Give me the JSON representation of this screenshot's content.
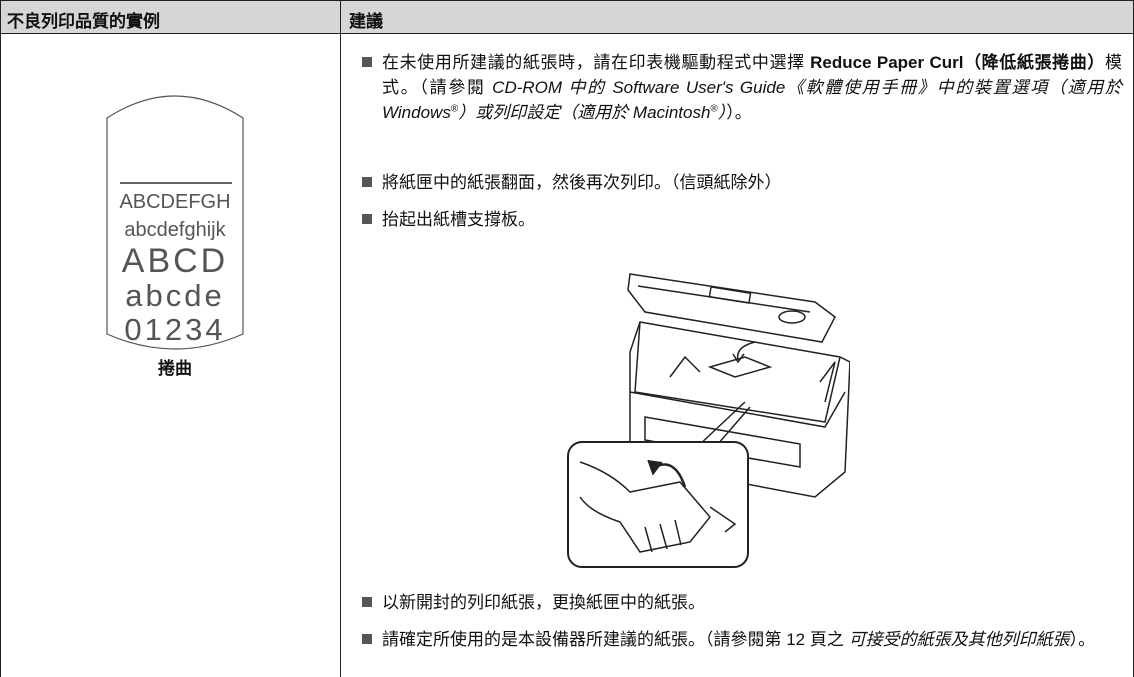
{
  "table": {
    "header": [
      "不良列印品質的實例",
      "建議"
    ],
    "example": {
      "sample_lines": [
        "ABCDEFGH",
        "abcdefghijk",
        "ABCD",
        "abcde",
        "01234"
      ],
      "caption": "捲曲"
    },
    "suggestions": [
      [
        "在未使用所建議的紙張時，請在印表機驅動程式中選擇 ",
        "Reduce Paper Curl",
        "（降低紙張捲曲）",
        "模式。（請參閱 ",
        "CD-ROM 中的 Software User's Guide《軟體使用手冊》中的裝置選項（適用於 Windows",
        "®",
        "）或列印設定（適用於 Macintosh",
        "®",
        "）",
        "）。"
      ],
      [
        "將紙匣中的紙張翻面，然後再次列印。（信頭紙除外）"
      ],
      [
        "抬起出紙槽支撐板。"
      ],
      [
        "以新開封的列印紙張，更換紙匣中的紙張。"
      ],
      [
        "請確定所使用的是本設備器所建議的紙張。（請參閱第 12 頁之 ",
        "可接受的紙張及其他列印紙張",
        "）。"
      ]
    ]
  }
}
